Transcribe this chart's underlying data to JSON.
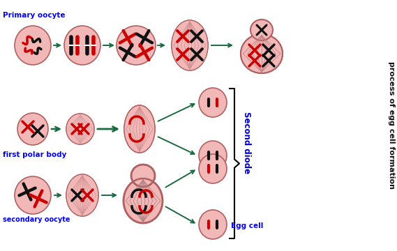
{
  "bg_color": "#ffffff",
  "cell_color": "#f2b8b8",
  "cell_edge_color": "#b06060",
  "arrow_color": "#1a6a40",
  "title_right": "process of egg cell formation",
  "label_primary": "Primary oocyte",
  "label_first_polar": "first polar body",
  "label_secondary": "secondary oocyte",
  "label_egg": "Egg cell",
  "label_second_diode": "Second diode",
  "blue": "#0000ff",
  "dark_blue": "#0000cc",
  "red": "#cc0000",
  "black": "#111111",
  "spindle_color": "#d09090",
  "fig_w": 5.69,
  "fig_h": 3.6,
  "dpi": 100
}
